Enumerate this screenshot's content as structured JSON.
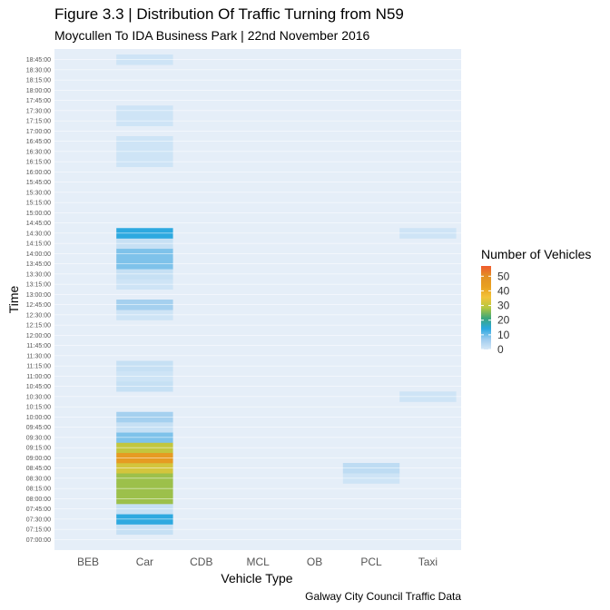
{
  "chart_data": {
    "type": "heatmap",
    "title": "Figure 3.3 | Distribution Of Traffic Turning from N59",
    "subtitle": "Moycullen To IDA Business Park | 22nd November 2016",
    "caption": "Galway City Council Traffic Data",
    "xlabel": "Vehicle Type",
    "ylabel": "Time",
    "legend_title": "Number of Vehicles",
    "legend_ticks": [
      "50",
      "40",
      "30",
      "20",
      "10",
      "0"
    ],
    "legend_values": [
      50,
      40,
      30,
      20,
      10,
      0
    ],
    "legend_max": 57,
    "categories": [
      "BEB",
      "Car",
      "CDB",
      "MCL",
      "OB",
      "PCL",
      "Taxi"
    ],
    "times": [
      "07:00:00",
      "07:15:00",
      "07:30:00",
      "07:45:00",
      "08:00:00",
      "08:15:00",
      "08:30:00",
      "08:45:00",
      "09:00:00",
      "09:15:00",
      "09:30:00",
      "09:45:00",
      "10:00:00",
      "10:15:00",
      "10:30:00",
      "10:45:00",
      "11:00:00",
      "11:15:00",
      "11:30:00",
      "11:45:00",
      "12:00:00",
      "12:15:00",
      "12:30:00",
      "12:45:00",
      "13:00:00",
      "13:15:00",
      "13:30:00",
      "13:45:00",
      "14:00:00",
      "14:15:00",
      "14:30:00",
      "14:45:00",
      "15:00:00",
      "15:15:00",
      "15:30:00",
      "15:45:00",
      "16:00:00",
      "16:15:00",
      "16:30:00",
      "16:45:00",
      "17:00:00",
      "17:15:00",
      "17:30:00",
      "17:45:00",
      "18:00:00",
      "18:15:00",
      "18:30:00",
      "18:45:00"
    ],
    "cells": [
      {
        "category": "Car",
        "time": "07:15:00",
        "value": 2
      },
      {
        "category": "Car",
        "time": "07:30:00",
        "value": 14
      },
      {
        "category": "Car",
        "time": "07:45:00",
        "value": 2
      },
      {
        "category": "Car",
        "time": "08:00:00",
        "value": 27
      },
      {
        "category": "Car",
        "time": "08:15:00",
        "value": 27
      },
      {
        "category": "Car",
        "time": "08:30:00",
        "value": 27
      },
      {
        "category": "Car",
        "time": "08:45:00",
        "value": 32
      },
      {
        "category": "Car",
        "time": "09:00:00",
        "value": 45
      },
      {
        "category": "Car",
        "time": "09:15:00",
        "value": 30
      },
      {
        "category": "Car",
        "time": "09:30:00",
        "value": 9
      },
      {
        "category": "Car",
        "time": "09:45:00",
        "value": 2
      },
      {
        "category": "Car",
        "time": "10:00:00",
        "value": 6
      },
      {
        "category": "Car",
        "time": "10:45:00",
        "value": 2
      },
      {
        "category": "Car",
        "time": "11:00:00",
        "value": 1
      },
      {
        "category": "Car",
        "time": "11:15:00",
        "value": 2
      },
      {
        "category": "Car",
        "time": "12:30:00",
        "value": 1
      },
      {
        "category": "Car",
        "time": "12:45:00",
        "value": 6
      },
      {
        "category": "Car",
        "time": "13:15:00",
        "value": 1
      },
      {
        "category": "Car",
        "time": "13:30:00",
        "value": 2
      },
      {
        "category": "Car",
        "time": "13:45:00",
        "value": 9
      },
      {
        "category": "Car",
        "time": "14:00:00",
        "value": 9
      },
      {
        "category": "Car",
        "time": "14:15:00",
        "value": 2
      },
      {
        "category": "Car",
        "time": "14:30:00",
        "value": 14
      },
      {
        "category": "Car",
        "time": "16:15:00",
        "value": 1
      },
      {
        "category": "Car",
        "time": "16:30:00",
        "value": 1
      },
      {
        "category": "Car",
        "time": "16:45:00",
        "value": 1
      },
      {
        "category": "Car",
        "time": "17:15:00",
        "value": 1
      },
      {
        "category": "Car",
        "time": "17:30:00",
        "value": 1
      },
      {
        "category": "Car",
        "time": "18:45:00",
        "value": 1
      },
      {
        "category": "PCL",
        "time": "08:30:00",
        "value": 1
      },
      {
        "category": "PCL",
        "time": "08:45:00",
        "value": 3
      },
      {
        "category": "Taxi",
        "time": "10:30:00",
        "value": 1
      },
      {
        "category": "Taxi",
        "time": "14:30:00",
        "value": 1
      }
    ]
  },
  "colors": {
    "panel_background": "#e5eef8",
    "gradient": [
      "#d6e8f7",
      "#9ccbee",
      "#29a8e0",
      "#3da67a",
      "#b5c73f",
      "#f3c33a",
      "#e8a020",
      "#e29125",
      "#f05a2e"
    ]
  }
}
